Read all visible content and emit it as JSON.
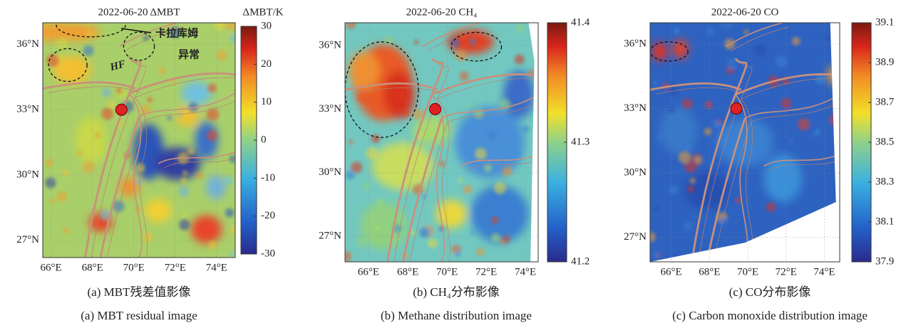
{
  "panels": [
    {
      "title": "2022-06-20 ΔMBT",
      "colorbar_label": "ΔMBT/K",
      "colorbar": {
        "lim": [
          -30,
          30
        ],
        "ticks": [
          30,
          20,
          10,
          0,
          -10,
          -20,
          -30
        ]
      },
      "xlim": [
        65.6,
        74.9
      ],
      "ylim": [
        26.2,
        37.0
      ],
      "xticks": [
        {
          "value": 66,
          "label": "66°E"
        },
        {
          "value": 68,
          "label": "68°E"
        },
        {
          "value": 70,
          "label": "70°E"
        },
        {
          "value": 72,
          "label": "72°E"
        },
        {
          "value": 74,
          "label": "74°E"
        }
      ],
      "yticks": [
        {
          "value": 27,
          "label": "27°N"
        },
        {
          "value": 30,
          "label": "30°N"
        },
        {
          "value": 33,
          "label": "33°N"
        },
        {
          "value": 36,
          "label": "36°N"
        }
      ],
      "annotations": [
        "卡拉库姆",
        "异常",
        "HF"
      ],
      "caption_zh": "(a) MBT残差值影像",
      "caption_en": "(a) MBT residual image"
    },
    {
      "title": "2022-06-20 CH₄",
      "colorbar": {
        "lim": [
          41.2,
          41.4
        ],
        "ticks": [
          41.4,
          41.3,
          41.2
        ]
      },
      "xlim": [
        64.8,
        74.65
      ],
      "ylim": [
        25.8,
        37.07
      ],
      "xticks": [
        {
          "value": 66,
          "label": "66°E"
        },
        {
          "value": 68,
          "label": "68°E"
        },
        {
          "value": 70,
          "label": "70°E"
        },
        {
          "value": 72,
          "label": "72°E"
        },
        {
          "value": 74,
          "label": "74°E"
        }
      ],
      "yticks": [
        {
          "value": 27,
          "label": "27°N"
        },
        {
          "value": 30,
          "label": "30°N"
        },
        {
          "value": 33,
          "label": "33°N"
        },
        {
          "value": 36,
          "label": "36°N"
        }
      ],
      "caption_zh": "(b) CH₄分布影像",
      "caption_en": "(b) Methane distribution image"
    },
    {
      "title": "2022-06-20 CO",
      "colorbar": {
        "lim": [
          37.9,
          39.1
        ],
        "ticks": [
          39.1,
          38.9,
          38.7,
          38.5,
          38.3,
          38.1,
          37.9
        ]
      },
      "xlim": [
        64.9,
        74.8
      ],
      "ylim": [
        25.85,
        37.0
      ],
      "xticks": [
        {
          "value": 66,
          "label": "66°E"
        },
        {
          "value": 68,
          "label": "68°E"
        },
        {
          "value": 70,
          "label": "70°E"
        },
        {
          "value": 72,
          "label": "72°E"
        },
        {
          "value": 74,
          "label": "74°E"
        }
      ],
      "yticks": [
        {
          "value": 27,
          "label": "27°N"
        },
        {
          "value": 30,
          "label": "30°N"
        },
        {
          "value": 33,
          "label": "33°N"
        },
        {
          "value": 36,
          "label": "36°N"
        }
      ],
      "caption_zh": "(c) CO分布影像",
      "caption_en": "(c) Carbon monoxide distribution image"
    }
  ]
}
